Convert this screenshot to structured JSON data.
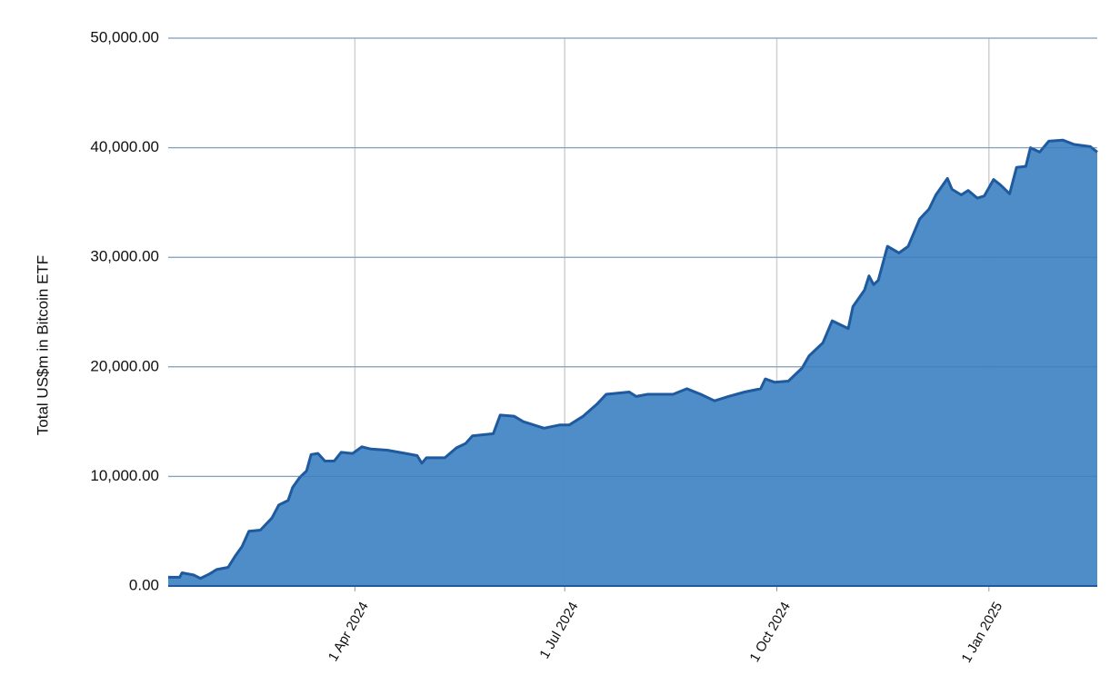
{
  "chart_data": {
    "type": "area",
    "y_label": "Total US$m in Bitcoin ETF",
    "x": [
      "2024-01-11",
      "2024-01-16",
      "2024-01-17",
      "2024-01-22",
      "2024-01-25",
      "2024-01-29",
      "2024-02-01",
      "2024-02-06",
      "2024-02-09",
      "2024-02-12",
      "2024-02-15",
      "2024-02-20",
      "2024-02-25",
      "2024-02-28",
      "2024-03-03",
      "2024-03-05",
      "2024-03-08",
      "2024-03-11",
      "2024-03-13",
      "2024-03-16",
      "2024-03-19",
      "2024-03-23",
      "2024-03-26",
      "2024-03-31",
      "2024-04-04",
      "2024-04-08",
      "2024-04-15",
      "2024-04-23",
      "2024-04-28",
      "2024-04-30",
      "2024-05-02",
      "2024-05-10",
      "2024-05-15",
      "2024-05-19",
      "2024-05-22",
      "2024-05-31",
      "2024-06-03",
      "2024-06-09",
      "2024-06-13",
      "2024-06-22",
      "2024-06-29",
      "2024-07-03",
      "2024-07-09",
      "2024-07-15",
      "2024-07-19",
      "2024-07-29",
      "2024-08-01",
      "2024-08-06",
      "2024-08-17",
      "2024-08-23",
      "2024-08-29",
      "2024-09-04",
      "2024-09-10",
      "2024-09-17",
      "2024-09-24",
      "2024-09-26",
      "2024-09-30",
      "2024-10-06",
      "2024-10-12",
      "2024-10-15",
      "2024-10-21",
      "2024-10-25",
      "2024-11-01",
      "2024-11-03",
      "2024-11-08",
      "2024-11-10",
      "2024-11-12",
      "2024-11-14",
      "2024-11-18",
      "2024-11-23",
      "2024-11-27",
      "2024-12-02",
      "2024-12-06",
      "2024-12-09",
      "2024-12-14",
      "2024-12-16",
      "2024-12-20",
      "2024-12-23",
      "2024-12-27",
      "2024-12-30",
      "2025-01-03",
      "2025-01-06",
      "2025-01-10",
      "2025-01-13",
      "2025-01-17",
      "2025-01-19",
      "2025-01-23",
      "2025-01-27",
      "2025-02-02",
      "2025-02-07",
      "2025-02-14",
      "2025-02-17"
    ],
    "series": [
      {
        "color": "#4a8bc7",
        "line_color": "#1f5a9e",
        "values": [
          800,
          800,
          1200,
          1000,
          700,
          1100,
          1500,
          1700,
          2700,
          3600,
          5000,
          5100,
          6200,
          7400,
          7800,
          9000,
          9900,
          10500,
          12000,
          12100,
          11400,
          11400,
          12200,
          12100,
          12700,
          12500,
          12400,
          12100,
          11900,
          11200,
          11700,
          11700,
          12600,
          13000,
          13700,
          13900,
          15600,
          15500,
          15000,
          14400,
          14700,
          14700,
          15500,
          16600,
          17500,
          17700,
          17300,
          17500,
          17500,
          18000,
          17500,
          16900,
          17300,
          17700,
          18000,
          18900,
          18600,
          18700,
          19900,
          21000,
          22200,
          24200,
          23500,
          25500,
          27000,
          28300,
          27500,
          27900,
          31000,
          30400,
          31000,
          33500,
          34400,
          35700,
          37200,
          36200,
          35700,
          36100,
          35400,
          35600,
          37100,
          36600,
          35800,
          38200,
          38300,
          40000,
          39600,
          40600,
          40700,
          40300,
          40100,
          39600
        ]
      }
    ],
    "xlim": [
      "2024-01-11",
      "2025-02-17"
    ],
    "xticks": [
      {
        "value": "2024-04-01",
        "label": "1 Apr 2024"
      },
      {
        "value": "2024-07-01",
        "label": "1 Jul 2024"
      },
      {
        "value": "2024-10-01",
        "label": "1 Oct 2024"
      },
      {
        "value": "2025-01-01",
        "label": "1 Jan 2025"
      }
    ],
    "ylim": [
      0,
      50000
    ],
    "yticks": [
      {
        "value": 0,
        "label": "0.00"
      },
      {
        "value": 10000,
        "label": "10,000.00"
      },
      {
        "value": 20000,
        "label": "20,000.00"
      },
      {
        "value": 30000,
        "label": "30,000.00"
      },
      {
        "value": 40000,
        "label": "40,000.00"
      },
      {
        "value": 50000,
        "label": "50,000.00"
      }
    ],
    "grid": true
  }
}
